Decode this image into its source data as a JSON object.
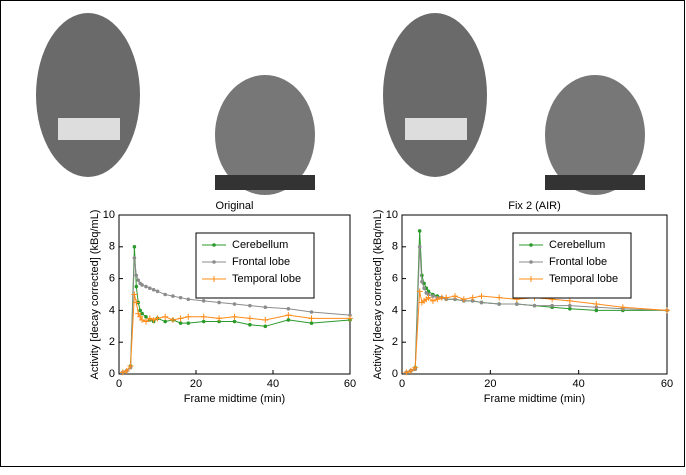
{
  "chart_data": [
    {
      "type": "line",
      "title": "Original",
      "xlabel": "Frame midtime (min)",
      "ylabel": "Activity [decay corrected] (kBq/mL)",
      "x": [
        1,
        2,
        3,
        4,
        4.5,
        5,
        5.5,
        6,
        7,
        8,
        9,
        10,
        12,
        14,
        16,
        18,
        22,
        26,
        30,
        34,
        38,
        44,
        50,
        60
      ],
      "series": [
        {
          "name": "Cerebellum",
          "color": "#2a9a2a",
          "marker": "dot",
          "values": [
            0.1,
            0.2,
            0.5,
            8.0,
            5.5,
            4.5,
            4.0,
            3.8,
            3.6,
            3.4,
            3.3,
            3.5,
            3.3,
            3.4,
            3.2,
            3.2,
            3.3,
            3.3,
            3.3,
            3.1,
            3.0,
            3.4,
            3.2,
            3.4
          ]
        },
        {
          "name": "Frontal lobe",
          "color": "#8c8c8c",
          "marker": "dot",
          "values": [
            0.1,
            0.2,
            0.4,
            7.3,
            6.2,
            5.9,
            5.7,
            5.6,
            5.5,
            5.4,
            5.3,
            5.2,
            5.0,
            4.9,
            4.8,
            4.7,
            4.6,
            4.5,
            4.4,
            4.3,
            4.2,
            4.1,
            3.9,
            3.7
          ]
        },
        {
          "name": "Temporal lobe",
          "color": "#ff8c1a",
          "marker": "plus",
          "values": [
            0.1,
            0.2,
            0.5,
            5.0,
            4.5,
            3.8,
            3.6,
            3.4,
            3.3,
            3.5,
            3.4,
            3.5,
            3.6,
            3.4,
            3.5,
            3.6,
            3.6,
            3.5,
            3.6,
            3.5,
            3.4,
            3.7,
            3.5,
            3.5
          ]
        }
      ],
      "xlim": [
        0,
        60
      ],
      "ylim": [
        0,
        10
      ],
      "xticks": [
        0,
        20,
        40,
        60
      ],
      "yticks": [
        0,
        2,
        4,
        6,
        8,
        10
      ],
      "legend": "upper right"
    },
    {
      "type": "line",
      "title": "Fix 2 (AIR)",
      "xlabel": "Frame midtime (min)",
      "ylabel": "Activity [decay corrected] (kBq/mL)",
      "x": [
        1,
        2,
        3,
        4,
        4.5,
        5,
        5.5,
        6,
        7,
        8,
        9,
        10,
        12,
        14,
        16,
        18,
        22,
        26,
        30,
        34,
        38,
        44,
        50,
        60
      ],
      "series": [
        {
          "name": "Cerebellum",
          "color": "#2a9a2a",
          "marker": "dot",
          "values": [
            0.1,
            0.2,
            0.4,
            9.0,
            6.2,
            5.7,
            5.4,
            5.2,
            5.0,
            4.9,
            4.8,
            4.7,
            4.7,
            4.6,
            4.6,
            4.5,
            4.4,
            4.4,
            4.3,
            4.2,
            4.1,
            4.0,
            4.0,
            4.0
          ]
        },
        {
          "name": "Frontal lobe",
          "color": "#8c8c8c",
          "marker": "dot",
          "values": [
            0.1,
            0.2,
            0.3,
            8.0,
            5.8,
            5.4,
            5.1,
            5.0,
            4.9,
            4.8,
            4.8,
            4.7,
            4.7,
            4.6,
            4.6,
            4.5,
            4.4,
            4.4,
            4.3,
            4.3,
            4.3,
            4.2,
            4.1,
            4.0
          ]
        },
        {
          "name": "Temporal lobe",
          "color": "#ff8c1a",
          "marker": "plus",
          "values": [
            0.1,
            0.2,
            0.4,
            5.2,
            4.5,
            4.6,
            4.7,
            4.8,
            4.6,
            4.7,
            4.8,
            4.8,
            4.9,
            4.7,
            4.8,
            4.9,
            4.8,
            4.7,
            4.8,
            4.7,
            4.6,
            4.4,
            4.2,
            4.0
          ]
        }
      ],
      "xlim": [
        0,
        60
      ],
      "ylim": [
        0,
        10
      ],
      "xticks": [
        0,
        20,
        40,
        60
      ],
      "yticks": [
        0,
        2,
        4,
        6,
        8,
        10
      ],
      "legend": "upper right"
    }
  ]
}
